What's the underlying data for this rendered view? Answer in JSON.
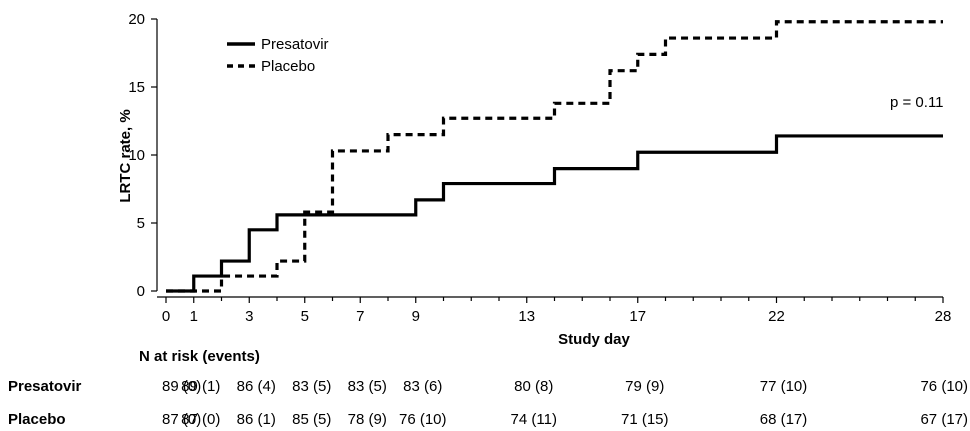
{
  "chart_data": {
    "type": "line",
    "title": "",
    "xlabel": "Study day",
    "ylabel": "LRTC rate, %",
    "xlim": [
      0,
      28
    ],
    "ylim": [
      0,
      20
    ],
    "xticks": [
      0,
      1,
      3,
      5,
      7,
      9,
      13,
      17,
      22,
      28
    ],
    "yticks": [
      0,
      5,
      10,
      15,
      20
    ],
    "xtick_labels": [
      "0",
      "1",
      "3",
      "5",
      "7",
      "9",
      "13",
      "17",
      "22",
      "28"
    ],
    "ytick_labels": [
      "0",
      "5",
      "10",
      "15",
      "20"
    ],
    "grid": false,
    "legend_position": "top-left",
    "annotation": "p = 0.11",
    "series": [
      {
        "name": "Presatovir",
        "style": "solid",
        "color": "#000000",
        "steps": [
          [
            0,
            0
          ],
          [
            1,
            1.1
          ],
          [
            2,
            2.2
          ],
          [
            3,
            4.5
          ],
          [
            4,
            5.6
          ],
          [
            9,
            6.7
          ],
          [
            10,
            7.9
          ],
          [
            14,
            9.0
          ],
          [
            17,
            10.2
          ],
          [
            22,
            11.4
          ],
          [
            28,
            11.4
          ]
        ]
      },
      {
        "name": "Placebo",
        "style": "dashed",
        "color": "#000000",
        "steps": [
          [
            0,
            0
          ],
          [
            2,
            1.1
          ],
          [
            4,
            2.2
          ],
          [
            5,
            5.8
          ],
          [
            6,
            10.3
          ],
          [
            8,
            11.5
          ],
          [
            10,
            12.7
          ],
          [
            14,
            13.8
          ],
          [
            16,
            16.2
          ],
          [
            17,
            17.4
          ],
          [
            18,
            18.6
          ],
          [
            22,
            19.8
          ],
          [
            28,
            19.8
          ]
        ]
      }
    ]
  },
  "risk_table": {
    "title": "N at risk (events)",
    "days": [
      0,
      1,
      3,
      5,
      7,
      9,
      13,
      17,
      22,
      28
    ],
    "rows": [
      {
        "label": "Presatovir",
        "values": [
          "89 (0)",
          "89 (1)",
          "86 (4)",
          "83 (5)",
          "83 (5)",
          "83 (6)",
          "80 (8)",
          "79 (9)",
          "77 (10)",
          "76 (10)"
        ]
      },
      {
        "label": "Placebo",
        "values": [
          "87 (0)",
          "87 (0)",
          "86 (1)",
          "85 (5)",
          "78 (9)",
          "76 (10)",
          "74 (11)",
          "71 (15)",
          "68 (17)",
          "67 (17)"
        ]
      }
    ]
  }
}
